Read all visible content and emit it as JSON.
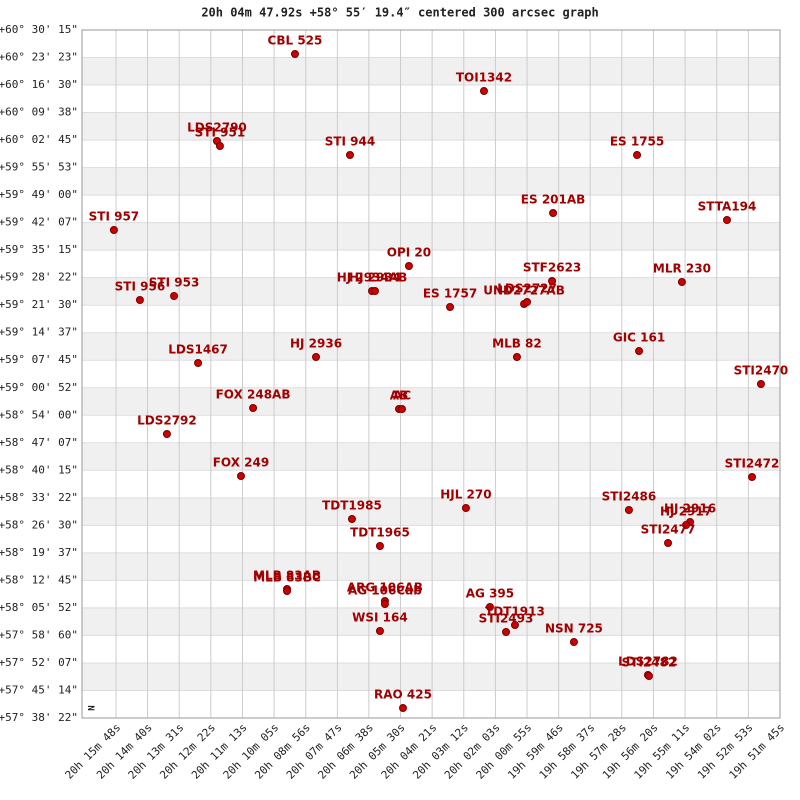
{
  "chart_data": {
    "type": "scatter",
    "title": "20h 04m 47.92s +58° 55′ 19.4″ centered 300 arcsec graph",
    "compass": "N",
    "color": "#cc0000",
    "label_color": "#a00000",
    "grid": true,
    "xlim": [
      20.28387,
      19.8625
    ],
    "ylim": [
      57.63944,
      60.50417
    ],
    "xticks": [
      {
        "value": 20.2633,
        "label": "20h 15m 48s"
      },
      {
        "value": 20.2443,
        "label": "20h 14m 40s"
      },
      {
        "value": 20.2252,
        "label": "20h 13m 31s"
      },
      {
        "value": 20.2061,
        "label": "20h 12m 22s"
      },
      {
        "value": 20.187,
        "label": "20h 11m 13s"
      },
      {
        "value": 20.1679,
        "label": "20h 10m 05s"
      },
      {
        "value": 20.1488,
        "label": "20h 08m 56s"
      },
      {
        "value": 20.1297,
        "label": "20h 07m 47s"
      },
      {
        "value": 20.1107,
        "label": "20h 06m 38s"
      },
      {
        "value": 20.0916,
        "label": "20h 05m 30s"
      },
      {
        "value": 20.0725,
        "label": "20h 04m 21s"
      },
      {
        "value": 20.0534,
        "label": "20h 03m 12s"
      },
      {
        "value": 20.0343,
        "label": "20h 02m 03s"
      },
      {
        "value": 20.0152,
        "label": "20h 00m 55s"
      },
      {
        "value": 19.9961,
        "label": "19h 59m 46s"
      },
      {
        "value": 19.9771,
        "label": "19h 58m 37s"
      },
      {
        "value": 19.958,
        "label": "19h 57m 28s"
      },
      {
        "value": 19.9389,
        "label": "19h 56m 20s"
      },
      {
        "value": 19.9198,
        "label": "19h 55m 11s"
      },
      {
        "value": 19.9007,
        "label": "19h 54m 02s"
      },
      {
        "value": 19.8816,
        "label": "19h 52m 53s"
      },
      {
        "value": 19.8625,
        "label": "19h 51m 45s"
      }
    ],
    "yticks": [
      {
        "value": 60.5042,
        "label": "+60° 30' 15\""
      },
      {
        "value": 60.3896,
        "label": "+60° 23' 23\""
      },
      {
        "value": 60.275,
        "label": "+60° 16' 30\""
      },
      {
        "value": 60.1604,
        "label": "+60° 09' 38\""
      },
      {
        "value": 60.0458,
        "label": "+60° 02' 45\""
      },
      {
        "value": 59.9313,
        "label": "+59° 55' 53\""
      },
      {
        "value": 59.8167,
        "label": "+59° 49' 00\""
      },
      {
        "value": 59.7021,
        "label": "+59° 42' 07\""
      },
      {
        "value": 59.5875,
        "label": "+59° 35' 15\""
      },
      {
        "value": 59.4729,
        "label": "+59° 28' 22\""
      },
      {
        "value": 59.3583,
        "label": "+59° 21' 30\""
      },
      {
        "value": 59.2437,
        "label": "+59° 14' 37\""
      },
      {
        "value": 59.1291,
        "label": "+59° 07' 45\""
      },
      {
        "value": 59.0145,
        "label": "+59° 00' 52\""
      },
      {
        "value": 58.9,
        "label": "+58° 54' 00\""
      },
      {
        "value": 58.7854,
        "label": "+58° 47' 07\""
      },
      {
        "value": 58.6708,
        "label": "+58° 40' 15\""
      },
      {
        "value": 58.5562,
        "label": "+58° 33' 22\""
      },
      {
        "value": 58.4416,
        "label": "+58° 26' 30\""
      },
      {
        "value": 58.327,
        "label": "+58° 19' 37\""
      },
      {
        "value": 58.2124,
        "label": "+58° 12' 45\""
      },
      {
        "value": 58.0978,
        "label": "+58° 05' 52\""
      },
      {
        "value": 57.9833,
        "label": "+57° 58' 60\""
      },
      {
        "value": 57.8687,
        "label": "+57° 52' 07\""
      },
      {
        "value": 57.7541,
        "label": "+57° 45' 14\""
      },
      {
        "value": 57.6395,
        "label": "+57° 38' 22\""
      }
    ],
    "points": [
      {
        "name": "CBL 525",
        "x": 20.1553,
        "y": 60.4042
      },
      {
        "name": "TOI1342",
        "x": 20.0412,
        "y": 60.2502
      },
      {
        "name": "LDS2790",
        "x": 20.2024,
        "y": 60.042
      },
      {
        "name": "STI 951",
        "x": 20.2006,
        "y": 60.0212
      },
      {
        "name": "STI 944",
        "x": 20.1221,
        "y": 59.9837
      },
      {
        "name": "ES 1755",
        "x": 19.9488,
        "y": 59.9837
      },
      {
        "name": "ES  201AB",
        "x": 19.9995,
        "y": 59.7422
      },
      {
        "name": "STTA194",
        "x": 19.8945,
        "y": 59.713
      },
      {
        "name": "STI 957",
        "x": 20.2646,
        "y": 59.6714
      },
      {
        "name": "OPI  20",
        "x": 20.0865,
        "y": 59.5215
      },
      {
        "name": "HJ 2934AB",
        "x": 20.1088,
        "y": 59.4174
      },
      {
        "name": "HJ 2934",
        "x": 20.107,
        "y": 59.4174
      },
      {
        "name": "STF2623",
        "x": 20.0001,
        "y": 59.459
      },
      {
        "name": "MLR 230",
        "x": 19.9217,
        "y": 59.4549
      },
      {
        "name": "UND2727AB",
        "x": 20.017,
        "y": 59.3633
      },
      {
        "name": "LDS2727",
        "x": 20.0152,
        "y": 59.3716
      },
      {
        "name": "STI 956",
        "x": 20.2489,
        "y": 59.3799
      },
      {
        "name": "STI 953",
        "x": 20.2283,
        "y": 59.3966
      },
      {
        "name": "ES 1757",
        "x": 20.0617,
        "y": 59.3508
      },
      {
        "name": "LDS1467",
        "x": 20.2138,
        "y": 59.1176
      },
      {
        "name": "HJ 2936",
        "x": 20.1426,
        "y": 59.1426
      },
      {
        "name": "MLB  82",
        "x": 20.0213,
        "y": 59.1426
      },
      {
        "name": "GIC 161",
        "x": 19.9476,
        "y": 59.1676
      },
      {
        "name": "STI2470",
        "x": 19.874,
        "y": 59.0302
      },
      {
        "name": "FOX 248AB",
        "x": 20.1806,
        "y": 58.9302
      },
      {
        "name": "AB",
        "x": 20.0925,
        "y": 58.9261
      },
      {
        "name": "AC",
        "x": 20.0907,
        "y": 58.9261
      },
      {
        "name": "LDS2792",
        "x": 20.2326,
        "y": 58.822
      },
      {
        "name": "FOX 249",
        "x": 20.1879,
        "y": 58.6471
      },
      {
        "name": "STI2472",
        "x": 19.8794,
        "y": 58.6429
      },
      {
        "name": "HJL 270",
        "x": 20.0521,
        "y": 58.5138
      },
      {
        "name": "STI2486",
        "x": 19.9537,
        "y": 58.5055
      },
      {
        "name": "HJ 2916",
        "x": 19.9168,
        "y": 58.4555
      },
      {
        "name": "HJ 2917",
        "x": 19.9192,
        "y": 58.443
      },
      {
        "name": "TDT1985",
        "x": 20.1209,
        "y": 58.468
      },
      {
        "name": "STI2477",
        "x": 19.9301,
        "y": 58.3681
      },
      {
        "name": "TDT1965",
        "x": 20.104,
        "y": 58.3556
      },
      {
        "name": "MLB  83AB",
        "x": 20.1601,
        "y": 58.1766
      },
      {
        "name": "MLB  83BC",
        "x": 20.1601,
        "y": 58.1682
      },
      {
        "name": "ARG 106AB",
        "x": 20.101,
        "y": 58.1266
      },
      {
        "name": "AG 106Cab",
        "x": 20.101,
        "y": 58.1141
      },
      {
        "name": "AG  395",
        "x": 20.0376,
        "y": 58.1016
      },
      {
        "name": "TDT1913",
        "x": 20.0225,
        "y": 58.0266
      },
      {
        "name": "STI2493",
        "x": 20.0279,
        "y": 57.9975
      },
      {
        "name": "WSI 164",
        "x": 20.104,
        "y": 58.0017
      },
      {
        "name": "NSN 725",
        "x": 19.9869,
        "y": 57.9559
      },
      {
        "name": "LDS2782",
        "x": 19.9422,
        "y": 57.8185
      },
      {
        "name": "STI2482",
        "x": 19.9416,
        "y": 57.8143
      },
      {
        "name": "RAO 425",
        "x": 20.0901,
        "y": 57.681
      }
    ]
  }
}
